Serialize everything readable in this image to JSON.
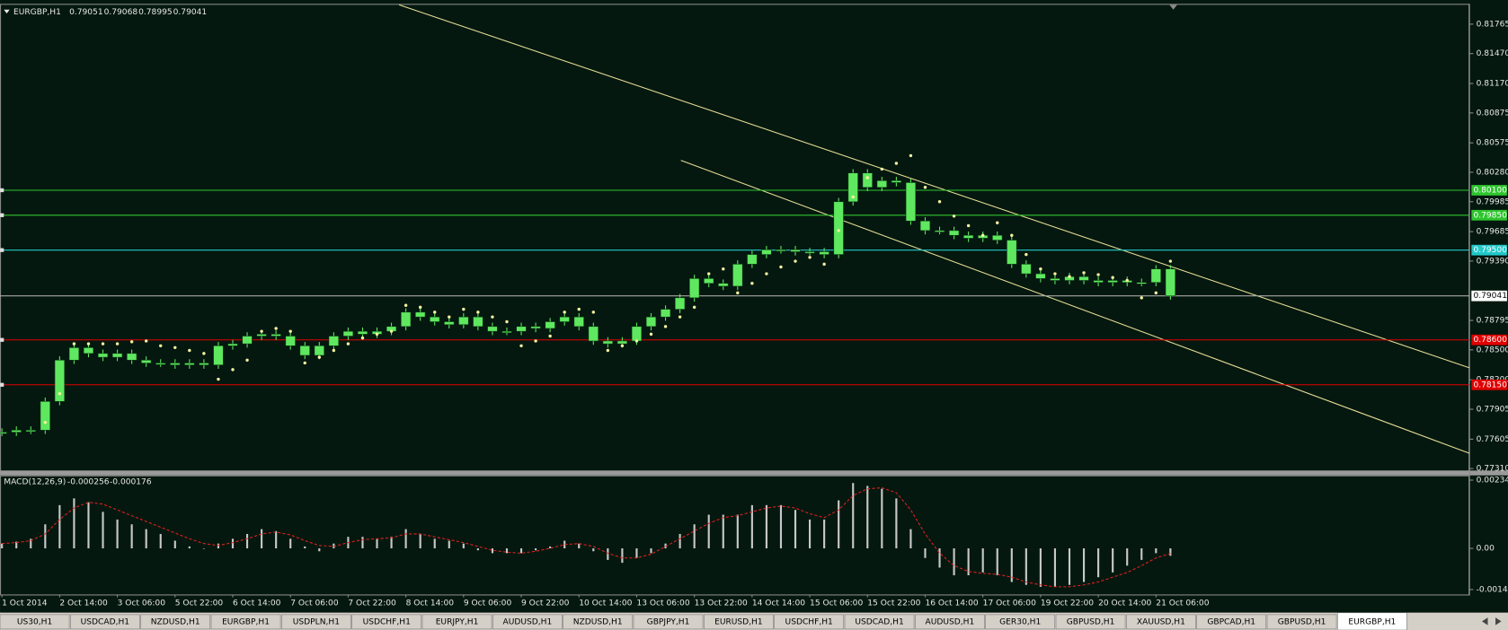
{
  "header": {
    "symbol": "EURGBP,H1",
    "ohlc": [
      0.79051,
      0.79068,
      0.78995,
      0.79041
    ]
  },
  "price": {
    "ylim": [
      0.7729,
      0.8193
    ],
    "yticks": [
      0.81765,
      {
        "value": 0.8147,
        "label": "0.81470"
      },
      {
        "value": 0.8117,
        "label": "0.81170"
      },
      0.80875,
      0.80575,
      {
        "value": 0.8028,
        "label": "0.80280"
      },
      0.79985,
      0.79685,
      {
        "value": 0.7939,
        "label": "0.79390"
      },
      0.78795,
      {
        "value": 0.785,
        "label": "0.78500"
      },
      {
        "value": 0.782,
        "label": "0.78200"
      },
      0.77905,
      0.77605,
      {
        "value": 0.7731,
        "label": "0.77310"
      }
    ],
    "x_labels": [
      "1 Oct 2014",
      "2 Oct 14:00",
      "3 Oct 06:00",
      "5 Oct 22:00",
      "6 Oct 14:00",
      "7 Oct 06:00",
      "7 Oct 22:00",
      "8 Oct 14:00",
      "9 Oct 06:00",
      "9 Oct 22:00",
      "10 Oct 14:00",
      "13 Oct 06:00",
      "13 Oct 22:00",
      "14 Oct 14:00",
      "15 Oct 06:00",
      "15 Oct 22:00",
      "16 Oct 14:00",
      "17 Oct 06:00",
      "19 Oct 22:00",
      "20 Oct 14:00",
      "21 Oct 06:00"
    ],
    "candle_color": "#5fe85f",
    "psar_color": "#f4f0a0",
    "closes": [
      0.77675,
      0.77695,
      0.77695,
      0.77983,
      0.78397,
      0.78522,
      0.78464,
      0.78426,
      0.78464,
      0.78397,
      0.78368,
      0.78368,
      0.78349,
      0.78368,
      0.78349,
      0.78541,
      0.78561,
      0.78638,
      0.78657,
      0.78638,
      0.78541,
      0.78445,
      0.78541,
      0.78638,
      0.78686,
      0.78657,
      0.78686,
      0.78734,
      0.78878,
      0.7883,
      0.78782,
      0.78753,
      0.7883,
      0.78734,
      0.78686,
      0.78686,
      0.78734,
      0.78715,
      0.78782,
      0.7883,
      0.78734,
      0.78589,
      0.78561,
      0.78589,
      0.78734,
      0.7883,
      0.78907,
      0.79022,
      0.79215,
      0.79167,
      0.79138,
      0.79359,
      0.79456,
      0.79504,
      0.79504,
      0.79484,
      0.79484,
      0.79456,
      0.79985,
      0.80273,
      0.80129,
      0.80196,
      0.80177,
      0.79792,
      0.79696,
      0.79696,
      0.79648,
      0.79619,
      0.79648,
      0.796,
      0.79359,
      0.79263,
      0.79215,
      0.79196,
      0.79234,
      0.79196,
      0.79176,
      0.79196,
      0.79176,
      0.79176,
      0.79311,
      0.79041
    ],
    "psar": [
      null,
      null,
      null,
      0.77773,
      0.78061,
      0.78561,
      0.78561,
      0.78561,
      0.78561,
      0.78581,
      0.78589,
      0.78541,
      0.78523,
      0.78494,
      0.78464,
      0.78206,
      0.78302,
      0.78397,
      0.78686,
      0.78715,
      0.78686,
      0.78369,
      0.78426,
      0.78494,
      0.78561,
      0.78619,
      0.78657,
      0.78686,
      0.78946,
      0.78927,
      0.78878,
      0.7883,
      0.78907,
      0.78878,
      0.7883,
      0.78782,
      0.78541,
      0.78589,
      0.78638,
      0.78878,
      0.78907,
      0.78878,
      0.78494,
      0.78541,
      0.78589,
      0.78657,
      0.78734,
      0.7883,
      0.78927,
      0.79263,
      0.79311,
      0.79071,
      0.79167,
      0.79263,
      0.79331,
      0.79389,
      0.79427,
      0.79359,
      0.79696,
      0.80033,
      0.80226,
      0.80312,
      0.8037,
      0.80447,
      0.80129,
      0.79985,
      0.79841,
      0.79745,
      0.79648,
      0.79774,
      0.79648,
      0.79456,
      0.79311,
      0.79263,
      0.79234,
      0.79273,
      0.79254,
      0.79225,
      0.79196,
      0.79022,
      0.79071,
      0.79389
    ],
    "levels": [
      {
        "value": 0.801,
        "label": "0.80100",
        "color": "#2ec52e"
      },
      {
        "value": 0.7985,
        "label": "0.79850",
        "color": "#2ec52e"
      },
      {
        "value": 0.795,
        "label": "0.79500",
        "color": "#22c8c8"
      },
      {
        "value": 0.786,
        "label": "0.78600",
        "color": "#e00000"
      },
      {
        "value": 0.7815,
        "label": "0.78150",
        "color": "#e00000"
      }
    ]
  },
  "macd": {
    "name": "MACD(12,26,9)",
    "ylim": [
      -0.00155,
      0.00244
    ],
    "yticks": [
      0.002343,
      {
        "value": 0,
        "label": "0.00"
      },
      -0.001414
    ],
    "histogram_color": "#c8c8c8",
    "signal_color": "#e02020",
    "histogram": [
      0.000165,
      0.000231,
      0.00033,
      0.000825,
      0.001485,
      0.001716,
      0.001584,
      0.001254,
      0.00099,
      0.000825,
      0.00066,
      0.000495,
      0.000264,
      6.6e-05,
      0,
      0.000165,
      0.00033,
      0.000495,
      0.00066,
      0.000594,
      0.00033,
      6.6e-05,
      -9.9e-05,
      0.000165,
      0.000396,
      0.000396,
      0.00033,
      0.000396,
      0.00066,
      0.000495,
      0.00033,
      0.000264,
      0.000165,
      -6.6e-05,
      -0.000165,
      -0.000165,
      -0.000165,
      -6.6e-05,
      6.6e-05,
      0.000264,
      0.000165,
      -9.9e-05,
      -0.000396,
      -0.000495,
      -0.00033,
      -0.000165,
      0.000165,
      0.000495,
      0.000825,
      0.001155,
      0.001155,
      0.001155,
      0.001485,
      0.001485,
      0.001485,
      0.00132,
      0.00099,
      0.00099,
      0.00165,
      0.002244,
      0.002145,
      0.002046,
      0.001716,
      0.00066,
      -0.00033,
      -0.00066,
      -0.000924,
      -0.000924,
      -0.000825,
      -0.000924,
      -0.001155,
      -0.001254,
      -0.00132,
      -0.00132,
      -0.001254,
      -0.001155,
      -0.00099,
      -0.000825,
      -0.000594,
      -0.000396,
      -0.000165,
      -0.000256
    ],
    "signal": [
      0.000165,
      0.000198,
      0.000264,
      0.000495,
      0.00099,
      0.001386,
      0.001584,
      0.001518,
      0.00132,
      0.001122,
      0.000924,
      0.000726,
      0.000528,
      0.00033,
      0.000165,
      9.9e-05,
      0.000198,
      0.00033,
      0.000495,
      0.000561,
      0.000462,
      0.000264,
      9.9e-05,
      6.6e-05,
      0.000198,
      0.000297,
      0.00033,
      0.000363,
      0.000495,
      0.000495,
      0.000396,
      0.000297,
      0.000198,
      6.6e-05,
      -6.6e-05,
      -0.000132,
      -0.000165,
      -9.9e-05,
      0,
      0.000132,
      0.000165,
      6.6e-05,
      -0.000165,
      -0.00033,
      -0.00033,
      -0.000198,
      6.6e-05,
      0.00033,
      0.000594,
      0.000858,
      0.001056,
      0.001122,
      0.001254,
      0.001386,
      0.001452,
      0.001386,
      0.001188,
      0.001056,
      0.00132,
      0.001815,
      0.002046,
      0.002079,
      0.001914,
      0.00132,
      0.000495,
      -0.000165,
      -0.000594,
      -0.000792,
      -0.000858,
      -0.000891,
      -0.00099,
      -0.001155,
      -0.001254,
      -0.00132,
      -0.00132,
      -0.001254,
      -0.001155,
      -0.00099,
      -0.000825,
      -0.000594,
      -0.00033,
      -0.000176
    ]
  },
  "tabs": [
    "US30,H1",
    "USDCAD,H1",
    "NZDUSD,H1",
    "EURGBP,H1",
    "USDPLN,H1",
    "USDCHF,H1",
    "EURJPY,H1",
    "AUDUSD,H1",
    "NZDUSD,H1",
    "GBPJPY,H1",
    "EURUSD,H1",
    "USDCHF,H1",
    "USDCAD,H1",
    "AUDUSD,H1",
    "GER30,H1",
    "GBPUSD,H1",
    "XAUUSD,H1",
    "GBPCAD,H1",
    "GBPUSD,H1",
    "EURGBP,H1"
  ],
  "active_tab": 19
}
